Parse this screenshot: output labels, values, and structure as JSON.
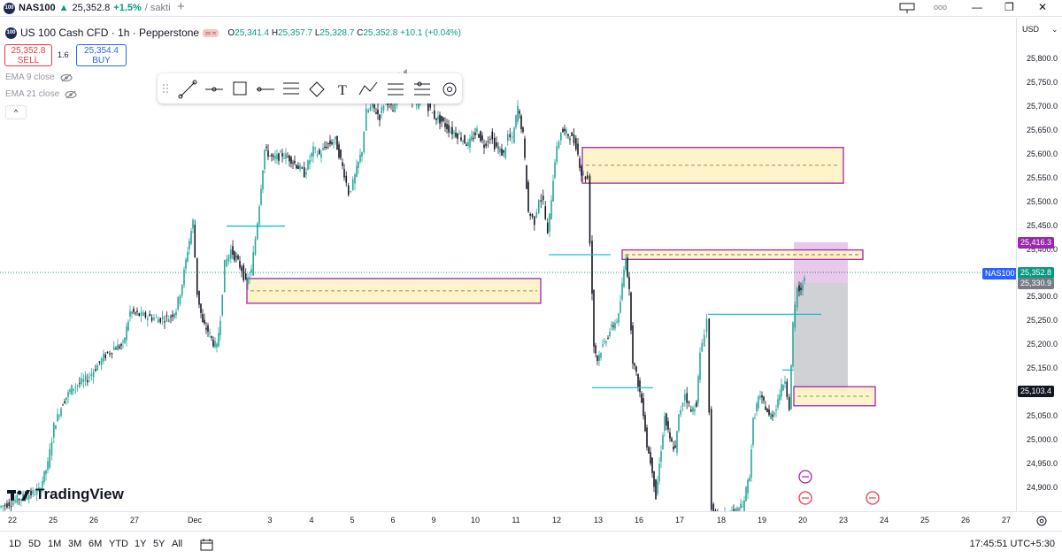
{
  "tab": {
    "symbol": "NAS100",
    "arrow": "▲",
    "price": "25,352.8",
    "change": "+1.5%",
    "rest": "/ sakti"
  },
  "window": {
    "minimize": "—",
    "restore": "❐",
    "close": "✕",
    "layout_icon": "layout-icon",
    "more": "ooo"
  },
  "legend": {
    "title": "US 100 Cash CFD · 1h · Pepperstone",
    "O": "25,341.4",
    "H": "25,357.7",
    "L": "25,328.7",
    "C": "25,352.8",
    "chg": "+10.1 (+0.04%)"
  },
  "trade": {
    "sell_price": "25,352.8",
    "sell_label": "SELL",
    "spread": "1.6",
    "buy_price": "25,354.4",
    "buy_label": "BUY"
  },
  "indicators": [
    {
      "label": "EMA 9 close"
    },
    {
      "label": "EMA 21 close"
    }
  ],
  "toolbar_icons": [
    "trend-line-icon",
    "horizontal-ray-icon",
    "rectangle-icon",
    "horizontal-line-icon",
    "fib-retracement-icon",
    "path-icon",
    "text-icon",
    "projection-icon",
    "long-position-icon",
    "short-position-icon",
    "settings-circle-icon"
  ],
  "brand": "TradingView",
  "currency": "USD",
  "chart_data": {
    "type": "candlestick",
    "instrument": "NAS100",
    "timeframe": "1h",
    "ylim": [
      24860,
      25850
    ],
    "y_ticks": [
      25800,
      25750,
      25700,
      25650,
      25600,
      25550,
      25500,
      25450,
      25400,
      25300,
      25250,
      25200,
      25150,
      25050,
      25000,
      24950,
      24900
    ],
    "price_badges": [
      {
        "label": "25,416.3",
        "value": 25416.3,
        "color": "#9c27b0"
      },
      {
        "label": "25,352.8",
        "value": 25352.8,
        "color": "#089981"
      },
      {
        "label": "25,330.9",
        "value": 25330.9,
        "color": "#787b86"
      },
      {
        "label": "25,103.4",
        "value": 25103.4,
        "color": "#131722"
      }
    ],
    "symbol_flag": "NAS100",
    "x_labels": [
      "22",
      "25",
      "26",
      "27",
      "Dec",
      "3",
      "4",
      "5",
      "6",
      "9",
      "10",
      "11",
      "12",
      "13",
      "16",
      "17",
      "18",
      "19",
      "20",
      "23",
      "24",
      "25",
      "26",
      "27"
    ],
    "close_path": [
      [
        0,
        24860
      ],
      [
        25,
        24880
      ],
      [
        45,
        24895
      ],
      [
        55,
        24950
      ],
      [
        62,
        25030
      ],
      [
        72,
        25080
      ],
      [
        82,
        25110
      ],
      [
        100,
        25130
      ],
      [
        118,
        25175
      ],
      [
        130,
        25195
      ],
      [
        140,
        25200
      ],
      [
        148,
        25270
      ],
      [
        156,
        25265
      ],
      [
        168,
        25260
      ],
      [
        180,
        25255
      ],
      [
        192,
        25258
      ],
      [
        200,
        25275
      ],
      [
        207,
        25330
      ],
      [
        213,
        25400
      ],
      [
        219,
        25460
      ],
      [
        224,
        25310
      ],
      [
        230,
        25245
      ],
      [
        236,
        25230
      ],
      [
        242,
        25205
      ],
      [
        246,
        25195
      ],
      [
        250,
        25260
      ],
      [
        255,
        25370
      ],
      [
        262,
        25400
      ],
      [
        268,
        25380
      ],
      [
        274,
        25360
      ],
      [
        279,
        25330
      ],
      [
        285,
        25355
      ],
      [
        292,
        25460
      ],
      [
        300,
        25610
      ],
      [
        310,
        25590
      ],
      [
        320,
        25600
      ],
      [
        330,
        25590
      ],
      [
        340,
        25570
      ],
      [
        345,
        25560
      ],
      [
        355,
        25610
      ],
      [
        362,
        25600
      ],
      [
        370,
        25620
      ],
      [
        380,
        25630
      ],
      [
        390,
        25560
      ],
      [
        395,
        25520
      ],
      [
        400,
        25540
      ],
      [
        410,
        25610
      ],
      [
        415,
        25690
      ],
      [
        422,
        25700
      ],
      [
        430,
        25680
      ],
      [
        437,
        25720
      ],
      [
        445,
        25690
      ],
      [
        452,
        25760
      ],
      [
        460,
        25760
      ],
      [
        467,
        25720
      ],
      [
        472,
        25700
      ],
      [
        478,
        25730
      ],
      [
        485,
        25700
      ],
      [
        492,
        25680
      ],
      [
        500,
        25670
      ],
      [
        510,
        25650
      ],
      [
        520,
        25640
      ],
      [
        530,
        25620
      ],
      [
        540,
        25650
      ],
      [
        548,
        25620
      ],
      [
        555,
        25640
      ],
      [
        560,
        25620
      ],
      [
        570,
        25600
      ],
      [
        575,
        25640
      ],
      [
        580,
        25630
      ],
      [
        586,
        25700
      ],
      [
        592,
        25640
      ],
      [
        598,
        25480
      ],
      [
        605,
        25460
      ],
      [
        610,
        25510
      ],
      [
        615,
        25500
      ],
      [
        620,
        25430
      ],
      [
        628,
        25590
      ],
      [
        635,
        25650
      ],
      [
        645,
        25640
      ],
      [
        652,
        25620
      ],
      [
        658,
        25560
      ],
      [
        665,
        25550
      ],
      [
        668,
        25420
      ],
      [
        672,
        25200
      ],
      [
        676,
        25170
      ],
      [
        680,
        25190
      ],
      [
        690,
        25230
      ],
      [
        700,
        25260
      ],
      [
        708,
        25390
      ],
      [
        712,
        25310
      ],
      [
        716,
        25170
      ],
      [
        722,
        25120
      ],
      [
        728,
        25060
      ],
      [
        732,
        24990
      ],
      [
        738,
        24940
      ],
      [
        742,
        24880
      ],
      [
        746,
        24950
      ],
      [
        752,
        25050
      ],
      [
        758,
        25000
      ],
      [
        764,
        24980
      ],
      [
        768,
        25050
      ],
      [
        775,
        25100
      ],
      [
        782,
        25060
      ],
      [
        788,
        25080
      ],
      [
        792,
        25180
      ],
      [
        797,
        25230
      ],
      [
        800,
        25255
      ],
      [
        805,
        24860
      ],
      [
        812,
        24830
      ],
      [
        820,
        24840
      ],
      [
        830,
        24850
      ],
      [
        840,
        24860
      ],
      [
        848,
        24930
      ],
      [
        852,
        25040
      ],
      [
        858,
        25090
      ],
      [
        864,
        25080
      ],
      [
        870,
        25050
      ],
      [
        876,
        25060
      ],
      [
        882,
        25100
      ],
      [
        888,
        25130
      ],
      [
        893,
        25070
      ],
      [
        897,
        25240
      ],
      [
        902,
        25320
      ],
      [
        906,
        25310
      ],
      [
        910,
        25350
      ]
    ],
    "zones": [
      {
        "from_x": 658,
        "to_x": 953,
        "top": 25615,
        "bottom": 25540
      },
      {
        "from_x": 703,
        "to_x": 975,
        "top": 25400,
        "bottom": 25380
      },
      {
        "from_x": 279,
        "to_x": 611,
        "top": 25340,
        "bottom": 25288
      },
      {
        "from_x": 897,
        "to_x": 989,
        "top": 25113,
        "bottom": 25073
      }
    ],
    "levels": [
      {
        "from_x": 256,
        "to_x": 322,
        "value": 25450
      },
      {
        "from_x": 620,
        "to_x": 690,
        "value": 25390
      },
      {
        "from_x": 800,
        "to_x": 928,
        "value": 25265
      },
      {
        "from_x": 669,
        "to_x": 738,
        "value": 25111
      },
      {
        "from_x": 884,
        "to_x": 897,
        "value": 25148
      }
    ],
    "position_tool": {
      "from_x": 897,
      "to_x": 958,
      "target": 25416.3,
      "entry": 25330.9,
      "stop": 25103.4
    }
  },
  "timeframes": [
    "1D",
    "5D",
    "1M",
    "3M",
    "6M",
    "YTD",
    "1Y",
    "5Y",
    "All"
  ],
  "clock": "17:45:51 UTC+5:30"
}
